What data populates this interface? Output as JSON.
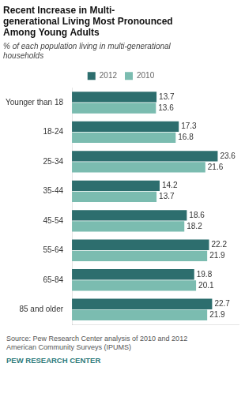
{
  "chart_data": {
    "type": "bar",
    "orientation": "horizontal",
    "title": "Recent Increase in Multi-\ngenerational Living Most Pronounced\nAmong Young Adults",
    "subtitle": "% of each population living in multi-generational\nhouseholds",
    "annotations": [
      "Source: Pew Research Center analysis of 2010 and 2012\nAmerican Community Surveys  (IPUMS)",
      "PEW RESEARCH CENTER"
    ],
    "categories": [
      "Younger than 18",
      "18-24",
      "25-34",
      "35-44",
      "45-54",
      "55-64",
      "65-84",
      "85 and older"
    ],
    "series": [
      {
        "name": "2012",
        "color": "#2d6e6e",
        "values": [
          13.7,
          17.3,
          23.6,
          14.2,
          18.6,
          22.2,
          19.8,
          22.7
        ]
      },
      {
        "name": "2010",
        "color": "#7bbcb0",
        "values": [
          13.6,
          16.8,
          21.6,
          13.7,
          18.2,
          21.9,
          20.1,
          21.9
        ]
      }
    ],
    "xlim": [
      0,
      27
    ],
    "grid": false,
    "legend": "top",
    "data_labels": true,
    "tick_labels": "y"
  }
}
